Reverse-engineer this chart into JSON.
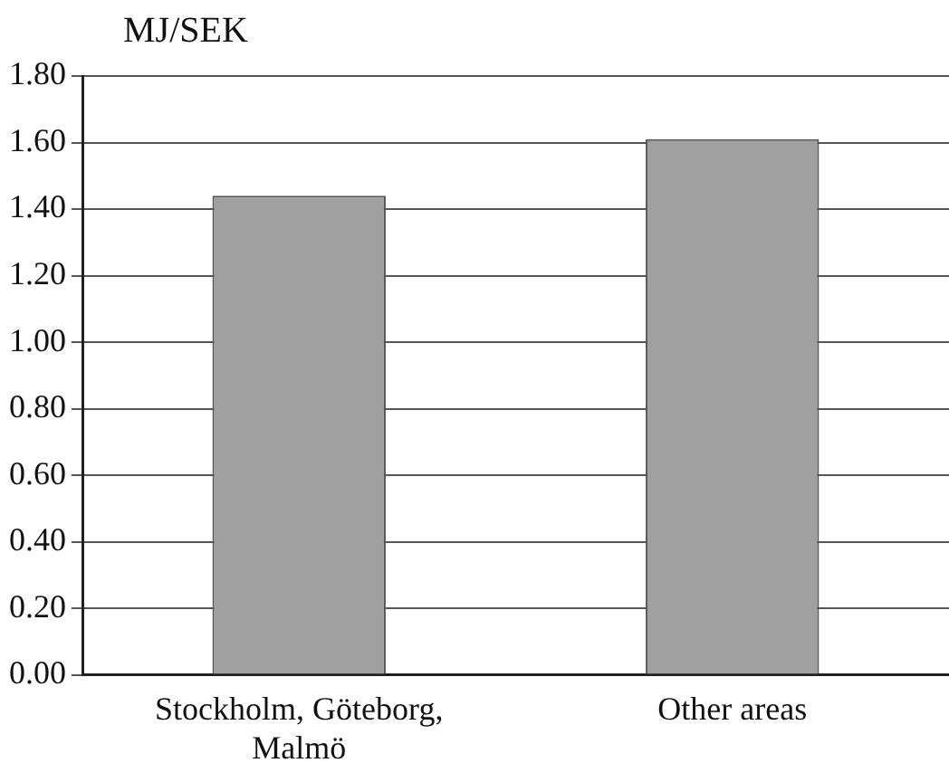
{
  "chart_data": {
    "type": "bar",
    "ylabel": "MJ/SEK",
    "categories": [
      "Stockholm, Göteborg, Malmö",
      "Other areas"
    ],
    "values": [
      1.44,
      1.61
    ],
    "color": "#a0a0a0",
    "ylim": [
      0,
      1.8
    ],
    "yticks": [
      {
        "value": 0,
        "label": "0.00"
      },
      {
        "value": 0.2,
        "label": "0.20"
      },
      {
        "value": 0.4,
        "label": "0.40"
      },
      {
        "value": 0.6,
        "label": "0.60"
      },
      {
        "value": 0.8,
        "label": "0.80"
      },
      {
        "value": 1,
        "label": "1.00"
      },
      {
        "value": 1.2,
        "label": "1.20"
      },
      {
        "value": 1.4,
        "label": "1.40"
      },
      {
        "value": 1.6,
        "label": "1.60"
      },
      {
        "value": 1.8,
        "label": "1.80"
      }
    ],
    "grid": "y",
    "legend": false
  }
}
